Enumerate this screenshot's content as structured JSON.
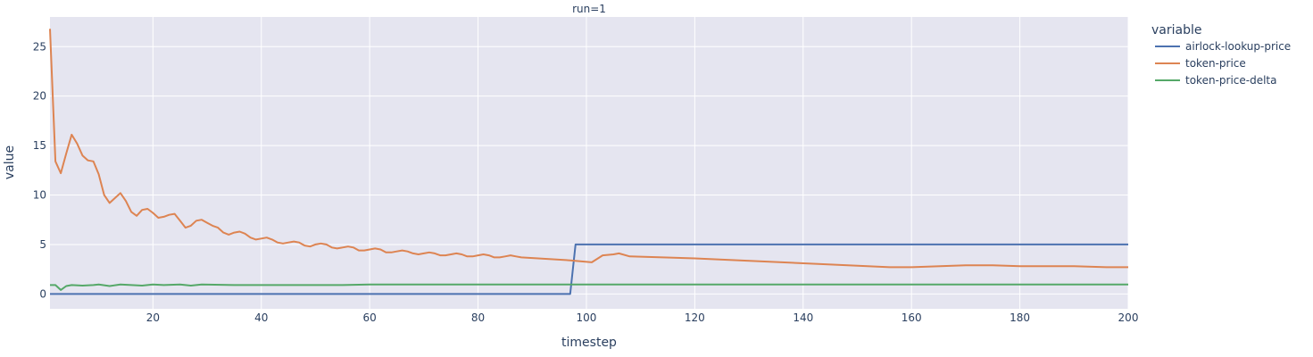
{
  "chart_data": {
    "type": "line",
    "title": "run=1",
    "xlabel": "timestep",
    "ylabel": "value",
    "xlim": [
      1,
      200
    ],
    "ylim": [
      -1.5,
      28
    ],
    "x_ticks": [
      20,
      40,
      60,
      80,
      100,
      120,
      140,
      160,
      180,
      200
    ],
    "y_ticks": [
      0,
      5,
      10,
      15,
      20,
      25
    ],
    "grid": true,
    "legend": {
      "title": "variable",
      "position": "top-right"
    },
    "series": [
      {
        "name": "airlock-lookup-price",
        "color": "#4c72b0",
        "points": [
          [
            1,
            0
          ],
          [
            97,
            0
          ],
          [
            98,
            5
          ],
          [
            200,
            5
          ]
        ]
      },
      {
        "name": "token-price",
        "color": "#dd8452",
        "points": [
          [
            1,
            26.8
          ],
          [
            2,
            13.4
          ],
          [
            3,
            12.2
          ],
          [
            4,
            14.2
          ],
          [
            5,
            16.1
          ],
          [
            6,
            15.2
          ],
          [
            7,
            14.0
          ],
          [
            8,
            13.5
          ],
          [
            9,
            13.4
          ],
          [
            10,
            12.1
          ],
          [
            11,
            10.0
          ],
          [
            12,
            9.2
          ],
          [
            13,
            9.7
          ],
          [
            14,
            10.2
          ],
          [
            15,
            9.4
          ],
          [
            16,
            8.3
          ],
          [
            17,
            7.9
          ],
          [
            18,
            8.5
          ],
          [
            19,
            8.6
          ],
          [
            20,
            8.2
          ],
          [
            21,
            7.7
          ],
          [
            22,
            7.8
          ],
          [
            23,
            8.0
          ],
          [
            24,
            8.1
          ],
          [
            25,
            7.4
          ],
          [
            26,
            6.7
          ],
          [
            27,
            6.9
          ],
          [
            28,
            7.4
          ],
          [
            29,
            7.5
          ],
          [
            30,
            7.2
          ],
          [
            31,
            6.9
          ],
          [
            32,
            6.7
          ],
          [
            33,
            6.2
          ],
          [
            34,
            6.0
          ],
          [
            35,
            6.2
          ],
          [
            36,
            6.3
          ],
          [
            37,
            6.1
          ],
          [
            38,
            5.7
          ],
          [
            39,
            5.5
          ],
          [
            40,
            5.6
          ],
          [
            41,
            5.7
          ],
          [
            42,
            5.5
          ],
          [
            43,
            5.2
          ],
          [
            44,
            5.1
          ],
          [
            45,
            5.2
          ],
          [
            46,
            5.3
          ],
          [
            47,
            5.2
          ],
          [
            48,
            4.9
          ],
          [
            49,
            4.8
          ],
          [
            50,
            5.0
          ],
          [
            51,
            5.1
          ],
          [
            52,
            5.0
          ],
          [
            53,
            4.7
          ],
          [
            54,
            4.6
          ],
          [
            55,
            4.7
          ],
          [
            56,
            4.8
          ],
          [
            57,
            4.7
          ],
          [
            58,
            4.4
          ],
          [
            59,
            4.4
          ],
          [
            60,
            4.5
          ],
          [
            61,
            4.6
          ],
          [
            62,
            4.5
          ],
          [
            63,
            4.2
          ],
          [
            64,
            4.2
          ],
          [
            65,
            4.3
          ],
          [
            66,
            4.4
          ],
          [
            67,
            4.3
          ],
          [
            68,
            4.1
          ],
          [
            69,
            4.0
          ],
          [
            70,
            4.1
          ],
          [
            71,
            4.2
          ],
          [
            72,
            4.1
          ],
          [
            73,
            3.9
          ],
          [
            74,
            3.9
          ],
          [
            75,
            4.0
          ],
          [
            76,
            4.1
          ],
          [
            77,
            4.0
          ],
          [
            78,
            3.8
          ],
          [
            79,
            3.8
          ],
          [
            80,
            3.9
          ],
          [
            81,
            4.0
          ],
          [
            82,
            3.9
          ],
          [
            83,
            3.7
          ],
          [
            84,
            3.7
          ],
          [
            85,
            3.8
          ],
          [
            86,
            3.9
          ],
          [
            87,
            3.8
          ],
          [
            88,
            3.7
          ],
          [
            97,
            3.4
          ],
          [
            101,
            3.2
          ],
          [
            103,
            3.9
          ],
          [
            105,
            4.0
          ],
          [
            106,
            4.1
          ],
          [
            108,
            3.8
          ],
          [
            120,
            3.6
          ],
          [
            156,
            2.7
          ],
          [
            160,
            2.7
          ],
          [
            170,
            2.9
          ],
          [
            172,
            2.9
          ],
          [
            175,
            2.9
          ],
          [
            180,
            2.8
          ],
          [
            190,
            2.8
          ],
          [
            196,
            2.7
          ],
          [
            200,
            2.7
          ]
        ]
      },
      {
        "name": "token-price-delta",
        "color": "#55a868",
        "points": [
          [
            1,
            0.9
          ],
          [
            2,
            0.9
          ],
          [
            3,
            0.4
          ],
          [
            4,
            0.8
          ],
          [
            5,
            0.9
          ],
          [
            7,
            0.85
          ],
          [
            9,
            0.9
          ],
          [
            10,
            0.95
          ],
          [
            12,
            0.8
          ],
          [
            14,
            0.95
          ],
          [
            16,
            0.9
          ],
          [
            18,
            0.85
          ],
          [
            20,
            0.95
          ],
          [
            22,
            0.9
          ],
          [
            25,
            0.95
          ],
          [
            27,
            0.85
          ],
          [
            29,
            0.95
          ],
          [
            35,
            0.9
          ],
          [
            40,
            0.9
          ],
          [
            45,
            0.9
          ],
          [
            55,
            0.9
          ],
          [
            60,
            0.95
          ],
          [
            80,
            0.95
          ],
          [
            120,
            0.95
          ],
          [
            160,
            0.95
          ],
          [
            200,
            0.95
          ]
        ]
      }
    ]
  }
}
